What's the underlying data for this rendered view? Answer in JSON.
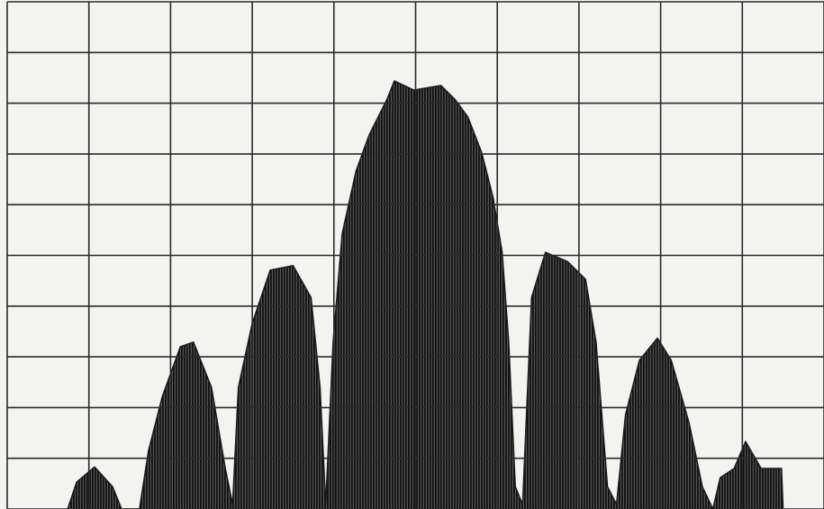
{
  "chart_data": {
    "type": "area",
    "color": "#1a1a1a",
    "x": [
      0.74,
      0.85,
      1.07,
      1.29,
      1.4,
      1.62,
      1.73,
      1.9,
      2.12,
      2.28,
      2.5,
      2.67,
      2.76,
      2.83,
      3.0,
      3.22,
      3.5,
      3.72,
      3.83,
      3.9,
      3.99,
      4.1,
      4.27,
      4.43,
      4.65,
      4.74,
      4.98,
      5.31,
      5.48,
      5.64,
      5.81,
      5.95,
      6.06,
      6.14,
      6.22,
      6.31,
      6.42,
      6.59,
      6.86,
      7.08,
      7.21,
      7.35,
      7.46,
      7.57,
      7.74,
      7.96,
      8.13,
      8.35,
      8.51,
      8.64,
      8.73,
      8.9,
      9.04,
      9.23,
      9.48,
      9.5
    ],
    "values": [
      0,
      0.53,
      0.83,
      0.44,
      0,
      0,
      1.15,
      2.22,
      3.2,
      3.29,
      2.4,
      0.8,
      0.09,
      2.4,
      3.66,
      4.71,
      4.8,
      4.17,
      2.4,
      0.09,
      3.29,
      5.42,
      6.66,
      7.37,
      8.08,
      8.44,
      8.26,
      8.35,
      8.08,
      7.73,
      7.02,
      6.13,
      5.06,
      3.29,
      0.44,
      0.09,
      4.17,
      5.06,
      4.88,
      4.53,
      3.29,
      0.44,
      0.09,
      1.86,
      2.93,
      3.37,
      2.93,
      1.69,
      0.44,
      0,
      0.62,
      0.8,
      1.33,
      0.8,
      0.8,
      0
    ],
    "xlim": [
      0,
      10
    ],
    "ylim": [
      0,
      10
    ],
    "xticks": [
      0,
      1,
      2,
      3,
      4,
      5,
      6,
      7,
      8,
      9,
      10
    ],
    "yticks": [
      0,
      1,
      2,
      3,
      4,
      5,
      6,
      7,
      8,
      9,
      10
    ],
    "grid": true
  }
}
